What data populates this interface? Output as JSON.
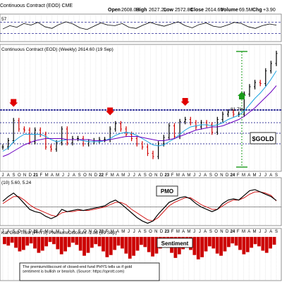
{
  "header": {
    "title": "Continuous Contract (EOD) CME",
    "open_label": "Open",
    "open": "2608.00",
    "high_label": "High",
    "high": "2627.20",
    "low_label": "Low",
    "low": "2572.80",
    "close_label": "Close",
    "close": "2614.60",
    "volume_label": "Volume",
    "volume": "69.5M",
    "chg_label": "Chg",
    "chg": "+3.90"
  },
  "rsi_panel": {
    "label": "57"
  },
  "price_panel": {
    "label": "Continuous Contract (EOD) (Weekly) 2614.60 (19 Sep)",
    "annotation_pct": "81.7%",
    "annotation_symbol": "$GOLD"
  },
  "pmo_panel": {
    "label": "(10) 5.60, 5.24",
    "annotation": "PMO"
  },
  "sentiment_panel": {
    "label": "ical Gold Trust (PHYS) Premium/Discount -1.08 (19 Sep)",
    "annotation": "Sentiment",
    "note": "The premium/discount of closed-end fund PHYS tells us if gold sentiment is bullish or bearish. (Source: https://sprott.com)"
  },
  "colors": {
    "panel_bg": "#ffffff",
    "grid": "#c8c8c8",
    "frame": "#7a7a7a",
    "up_bar": "#000000",
    "down_bar": "#d00000",
    "ma_short": "#1aa3e0",
    "ma_long": "#6a00c0",
    "support_line": "#000080",
    "signal_arrow": "#e00000",
    "target_arrow": "#1a9a1a",
    "pmo": "#000000",
    "pmo_signal": "#d00000",
    "sentiment": "#cc0000"
  },
  "chart_data": [
    {
      "type": "line",
      "title": "",
      "series": [
        {
          "values": [
            46,
            58,
            52,
            66,
            60,
            70,
            54,
            48,
            62,
            72,
            64,
            50,
            44,
            56,
            68,
            60,
            58,
            66,
            52,
            48,
            60,
            70,
            62,
            56,
            64,
            72,
            58,
            50,
            62,
            68,
            56,
            52,
            60,
            70,
            66,
            54,
            48,
            58,
            64,
            60
          ]
        }
      ],
      "ylim": [
        0,
        100
      ]
    },
    {
      "type": "line",
      "title": "Continuous Contract (EOD) (Weekly) 2614.60 (19 Sep)",
      "x": [
        "2020-06",
        "2020-07",
        "2020-08",
        "2020-09",
        "2020-10",
        "2020-11",
        "2020-12",
        "2021-01",
        "2021-02",
        "2021-03",
        "2021-04",
        "2021-05",
        "2021-06",
        "2021-07",
        "2021-08",
        "2021-09",
        "2021-10",
        "2021-11",
        "2021-12",
        "2022-01",
        "2022-02",
        "2022-03",
        "2022-04",
        "2022-05",
        "2022-06",
        "2022-07",
        "2022-08",
        "2022-09",
        "2022-10",
        "2022-11",
        "2022-12",
        "2023-01",
        "2023-02",
        "2023-03",
        "2023-04",
        "2023-05",
        "2023-06",
        "2023-07",
        "2023-08",
        "2023-09",
        "2023-10",
        "2023-11",
        "2023-12",
        "2024-01",
        "2024-02",
        "2024-03",
        "2024-04",
        "2024-05",
        "2024-06",
        "2024-07",
        "2024-08",
        "2024-09"
      ],
      "series": [
        {
          "name": "close",
          "values": [
            1730,
            1790,
            1980,
            1900,
            1890,
            1780,
            1890,
            1850,
            1730,
            1710,
            1770,
            1900,
            1770,
            1810,
            1810,
            1760,
            1780,
            1790,
            1800,
            1800,
            1900,
            1950,
            1900,
            1850,
            1810,
            1760,
            1730,
            1670,
            1640,
            1760,
            1820,
            1930,
            1830,
            1970,
            1990,
            1960,
            1920,
            1960,
            1940,
            1870,
            1990,
            2040,
            2060,
            2040,
            2040,
            2230,
            2300,
            2340,
            2330,
            2450,
            2520,
            2614.6
          ]
        },
        {
          "name": "ma_short",
          "values": [
            1690,
            1720,
            1780,
            1820,
            1850,
            1850,
            1850,
            1850,
            1830,
            1800,
            1780,
            1790,
            1800,
            1800,
            1800,
            1790,
            1780,
            1780,
            1780,
            1790,
            1810,
            1840,
            1860,
            1870,
            1860,
            1840,
            1810,
            1780,
            1750,
            1740,
            1750,
            1780,
            1810,
            1850,
            1890,
            1920,
            1930,
            1940,
            1940,
            1930,
            1940,
            1960,
            1990,
            2010,
            2030,
            2070,
            2130,
            2190,
            2240,
            2300,
            2370,
            2450
          ]
        },
        {
          "name": "ma_long",
          "values": [
            1640,
            1660,
            1690,
            1720,
            1750,
            1770,
            1790,
            1800,
            1810,
            1810,
            1810,
            1810,
            1800,
            1800,
            1800,
            1800,
            1800,
            1790,
            1790,
            1790,
            1800,
            1810,
            1820,
            1830,
            1830,
            1830,
            1820,
            1810,
            1800,
            1790,
            1790,
            1800,
            1810,
            1830,
            1850,
            1870,
            1890,
            1900,
            1910,
            1920,
            1920,
            1930,
            1950,
            1970,
            1990,
            2020,
            2060,
            2100,
            2150,
            2200,
            2250,
            2310
          ]
        }
      ],
      "ylim": [
        1500,
        2700
      ]
    },
    {
      "type": "line",
      "title": "",
      "series": [
        {
          "name": "PMO",
          "values": [
            5,
            9,
            12,
            8,
            3,
            -2,
            -4,
            -5,
            -8,
            -10,
            -8,
            -2,
            -4,
            -3,
            -2,
            -3,
            -2,
            -1,
            0,
            1,
            4,
            6,
            3,
            -1,
            -5,
            -9,
            -12,
            -14,
            -12,
            -6,
            -1,
            4,
            6,
            8,
            9,
            7,
            3,
            0,
            -2,
            -4,
            -2,
            3,
            6,
            7,
            6,
            10,
            14,
            15,
            13,
            11,
            9,
            5.6
          ]
        },
        {
          "name": "signal",
          "values": [
            3,
            6,
            9,
            9,
            6,
            2,
            -1,
            -3,
            -5,
            -7,
            -8,
            -5,
            -4,
            -4,
            -3,
            -3,
            -3,
            -2,
            -1,
            0,
            2,
            4,
            4,
            2,
            -2,
            -5,
            -8,
            -11,
            -12,
            -9,
            -4,
            1,
            4,
            6,
            8,
            8,
            5,
            2,
            0,
            -2,
            -2,
            1,
            4,
            6,
            6,
            8,
            11,
            13,
            13,
            12,
            10,
            5.24
          ]
        }
      ],
      "ylim": [
        -16,
        18
      ]
    },
    {
      "type": "bar",
      "title": "",
      "series": [
        {
          "name": "PHYS Premium/Discount",
          "values": [
            -1.0,
            -1.2,
            -0.8,
            -1.5,
            -2.0,
            -1.8,
            -1.2,
            -0.9,
            -1.6,
            -2.2,
            -1.9,
            -1.3,
            -0.7,
            -1.0,
            -1.7,
            -2.4,
            -2.0,
            -1.4,
            -0.8,
            -1.1,
            -1.9,
            -2.6,
            -2.2,
            -1.5,
            -1.0,
            -1.3,
            -2.0,
            -2.8,
            -2.5,
            -1.8,
            -1.2,
            -1.6,
            -2.3,
            -3.0,
            -2.6,
            -1.9,
            -1.1,
            -1.4,
            -2.1,
            -2.7,
            -2.3,
            -1.6,
            -1.0,
            -1.5,
            -2.2,
            -2.9,
            -2.4,
            -1.7,
            -1.2,
            -1.8,
            -2.5,
            -3.1,
            -2.8,
            -2.0,
            -1.3,
            -1.6,
            -2.3,
            -2.6,
            -2.0,
            -1.4,
            -0.9,
            -1.2,
            -1.8,
            -2.4,
            -2.1,
            -1.5,
            -1.0,
            -1.3,
            -1.9,
            -2.2,
            -1.6,
            -1.08
          ]
        }
      ],
      "ylim": [
        -3.5,
        0
      ]
    }
  ],
  "x_axis": {
    "ticks": [
      "J",
      "A",
      "S",
      "O",
      "N",
      "D",
      "21",
      "F",
      "M",
      "A",
      "M",
      "J",
      "J",
      "A",
      "S",
      "O",
      "N",
      "D",
      "22",
      "F",
      "M",
      "A",
      "M",
      "J",
      "J",
      "A",
      "S",
      "O",
      "N",
      "D",
      "23",
      "F",
      "M",
      "A",
      "M",
      "J",
      "J",
      "A",
      "S",
      "O",
      "N",
      "D",
      "24",
      "F",
      "M",
      "A",
      "M",
      "J",
      "J",
      "A",
      "S"
    ]
  }
}
